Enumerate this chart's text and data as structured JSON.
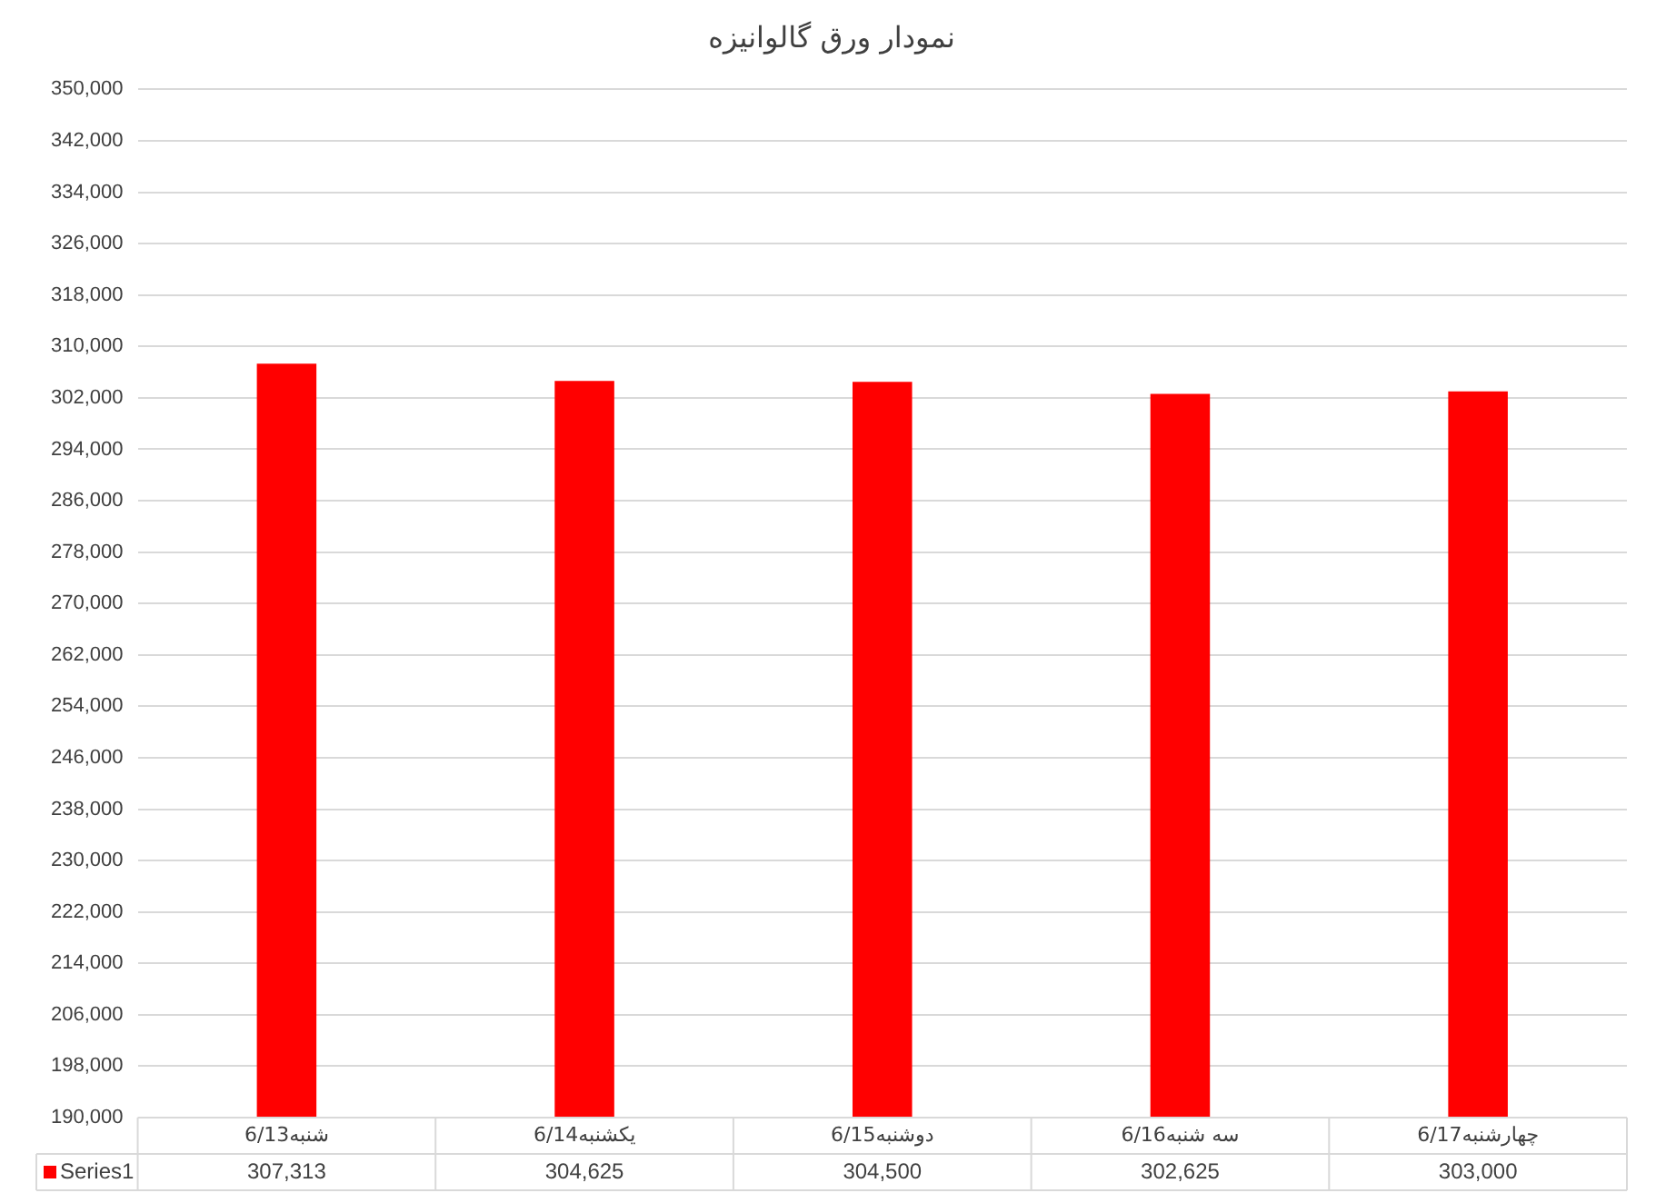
{
  "chart_data": {
    "type": "bar",
    "title": "نمودار ورق گالوانیزه",
    "categories": [
      "شنبه6/13",
      "یکشنبه6/14",
      "دوشنبه6/15",
      "سه شنبه6/16",
      "چهارشنبه6/17"
    ],
    "series": [
      {
        "name": "Series1",
        "color": "#ff0000",
        "values": [
          307313,
          304625,
          304500,
          302625,
          303000
        ],
        "value_labels": [
          "307,313",
          "304,625",
          "304,500",
          "302,625",
          "303,000"
        ]
      }
    ],
    "ylim": [
      190000,
      350000
    ],
    "yticks": [
      {
        "value": 190000,
        "label": "190,000"
      },
      {
        "value": 198000,
        "label": "198,000"
      },
      {
        "value": 206000,
        "label": "206,000"
      },
      {
        "value": 214000,
        "label": "214,000"
      },
      {
        "value": 222000,
        "label": "222,000"
      },
      {
        "value": 230000,
        "label": "230,000"
      },
      {
        "value": 238000,
        "label": "238,000"
      },
      {
        "value": 246000,
        "label": "246,000"
      },
      {
        "value": 254000,
        "label": "254,000"
      },
      {
        "value": 262000,
        "label": "262,000"
      },
      {
        "value": 270000,
        "label": "270,000"
      },
      {
        "value": 278000,
        "label": "278,000"
      },
      {
        "value": 286000,
        "label": "286,000"
      },
      {
        "value": 294000,
        "label": "294,000"
      },
      {
        "value": 302000,
        "label": "302,000"
      },
      {
        "value": 310000,
        "label": "310,000"
      },
      {
        "value": 318000,
        "label": "318,000"
      },
      {
        "value": 326000,
        "label": "326,000"
      },
      {
        "value": 334000,
        "label": "334,000"
      },
      {
        "value": 342000,
        "label": "342,000"
      },
      {
        "value": 350000,
        "label": "350,000"
      }
    ],
    "grid": "y",
    "legend": "bottom"
  }
}
